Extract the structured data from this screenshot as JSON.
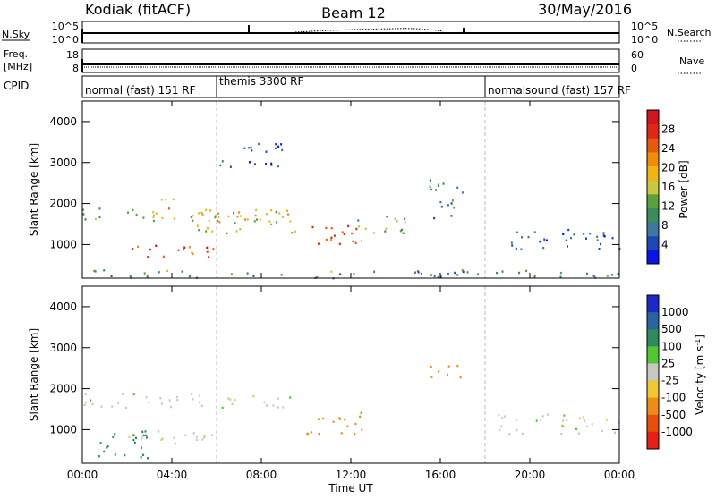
{
  "header": {
    "radar": "Kodiak (fitACF)",
    "beam": "Beam 12",
    "date": "30/May/2016"
  },
  "strips": {
    "nsky_label": "N.Sky",
    "nsky_tick_top": "10^5",
    "nsky_tick_bottom": "10^0",
    "nsearch_label": "N.Search",
    "freq_label": "Freq.",
    "freq_unit": "[MHz]",
    "freq_tick_top": "18",
    "freq_tick_bottom": "8",
    "nave_label": "Nave",
    "nave_tick_top": "60",
    "nave_tick_bottom": "0",
    "cpid_label": "CPID"
  },
  "cpid_modes": [
    {
      "label": "normal (fast) 151 RF",
      "start_hour": 0
    },
    {
      "label": "themis 3300 RF",
      "start_hour": 6
    },
    {
      "label": "normalsound (fast) 157 RF",
      "start_hour": 18
    }
  ],
  "x_axis": {
    "label": "Time UT",
    "ticks": [
      "00:00",
      "04:00",
      "08:00",
      "12:00",
      "16:00",
      "20:00",
      "00:00"
    ]
  },
  "power_panel": {
    "y_label": "Slant Range [km]",
    "y_ticks": [
      "4000",
      "3000",
      "2000",
      "1000"
    ],
    "colorbar_label": "Power [dB]",
    "colorbar_ticks": [
      "28",
      "24",
      "20",
      "16",
      "12",
      "8",
      "4"
    ]
  },
  "velocity_panel": {
    "y_label": "Slant Range [km]",
    "y_ticks": [
      "4000",
      "3000",
      "2000",
      "1000"
    ],
    "colorbar_label": "Velocity [m s",
    "colorbar_label_sup": "-1",
    "colorbar_label_end": "]",
    "colorbar_ticks": [
      "1000",
      "500",
      "100",
      "25",
      "-25",
      "-100",
      "-500",
      "-1000"
    ]
  },
  "chart_data": [
    {
      "type": "heatmap",
      "title": "Power",
      "xlabel": "Time UT",
      "ylabel": "Slant Range [km]",
      "xlim_hours": [
        0,
        24
      ],
      "ylim_km": [
        180,
        4500
      ],
      "colorbar": {
        "label": "Power [dB]",
        "range": [
          0,
          32
        ],
        "colors": [
          "#0a14e6",
          "#1e46b4",
          "#3c78a0",
          "#3c8c5a",
          "#5aa03c",
          "#c8c83c",
          "#f0b414",
          "#f08c0a",
          "#e65a0a",
          "#dc2814",
          "#d2141e"
        ]
      },
      "regions": [
        {
          "t_start": 0.0,
          "t_end": 9.5,
          "r_start": 1550,
          "r_end": 1900,
          "level_db": 14
        },
        {
          "t_start": 3.2,
          "t_end": 4.5,
          "r_start": 1900,
          "r_end": 2150,
          "level_db": 20
        },
        {
          "t_start": 2.0,
          "t_end": 6.0,
          "r_start": 650,
          "r_end": 1000,
          "level_db": 26
        },
        {
          "t_start": 5.0,
          "t_end": 9.5,
          "r_start": 1300,
          "r_end": 1900,
          "level_db": 18
        },
        {
          "t_start": 10.0,
          "t_end": 12.5,
          "r_start": 900,
          "r_end": 1500,
          "level_db": 24
        },
        {
          "t_start": 12.0,
          "t_end": 14.5,
          "r_start": 1300,
          "r_end": 1800,
          "level_db": 14
        },
        {
          "t_start": 6.0,
          "t_end": 9.0,
          "r_start": 2900,
          "r_end": 3500,
          "level_db": 6
        },
        {
          "t_start": 15.5,
          "t_end": 17.0,
          "r_start": 1600,
          "r_end": 2600,
          "level_db": 8
        },
        {
          "t_start": 18.5,
          "t_end": 24.0,
          "r_start": 900,
          "r_end": 1400,
          "level_db": 6
        },
        {
          "t_start": 0.0,
          "t_end": 24.0,
          "r_start": 200,
          "r_end": 400,
          "level_db": 10
        }
      ]
    },
    {
      "type": "heatmap",
      "title": "Velocity",
      "xlabel": "Time UT",
      "ylabel": "Slant Range [km]",
      "xlim_hours": [
        0,
        24
      ],
      "ylim_km": [
        180,
        4500
      ],
      "colorbar": {
        "label": "Velocity [m s-1]",
        "boundaries": [
          1000,
          500,
          100,
          25,
          -25,
          -100,
          -500,
          -1000
        ],
        "colors": [
          "#1e28c8",
          "#2864a0",
          "#2d8c5a",
          "#50c832",
          "#c8c8c3",
          "#f0c832",
          "#f08c14",
          "#e6500a",
          "#e61e14"
        ]
      },
      "regions": [
        {
          "t_start": 0.0,
          "t_end": 9.5,
          "r_start": 1550,
          "r_end": 1900,
          "velocity": 0
        },
        {
          "t_start": 2.0,
          "t_end": 6.0,
          "r_start": 650,
          "r_end": 1000,
          "velocity": 0
        },
        {
          "t_start": 10.0,
          "t_end": 12.5,
          "r_start": 900,
          "r_end": 1500,
          "velocity": -300
        },
        {
          "t_start": 15.5,
          "t_end": 17.0,
          "r_start": 2200,
          "r_end": 2600,
          "velocity": -300
        },
        {
          "t_start": 0.5,
          "t_end": 3.0,
          "r_start": 300,
          "r_end": 1100,
          "velocity": 200
        },
        {
          "t_start": 18.5,
          "t_end": 24.0,
          "r_start": 900,
          "r_end": 1400,
          "velocity": 0
        }
      ]
    }
  ]
}
